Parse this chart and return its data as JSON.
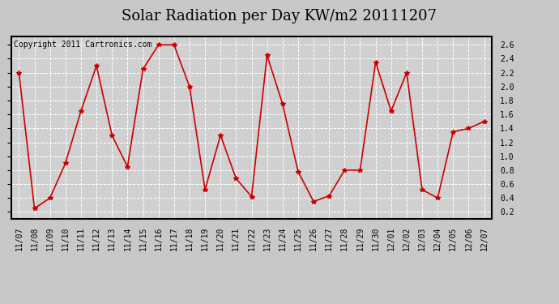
{
  "title": "Solar Radiation per Day KW/m2 20111207",
  "copyright_text": "Copyright 2011 Cartronics.com",
  "dates": [
    "11/07",
    "11/08",
    "11/09",
    "11/10",
    "11/11",
    "11/12",
    "11/13",
    "11/14",
    "11/15",
    "11/16",
    "11/17",
    "11/18",
    "11/19",
    "11/20",
    "11/21",
    "11/22",
    "11/23",
    "11/24",
    "11/25",
    "11/26",
    "11/27",
    "11/28",
    "11/29",
    "11/30",
    "12/01",
    "12/02",
    "12/03",
    "12/04",
    "12/05",
    "12/06",
    "12/07"
  ],
  "values": [
    2.2,
    0.25,
    0.4,
    0.9,
    1.65,
    2.3,
    1.3,
    0.85,
    2.25,
    2.6,
    2.6,
    2.0,
    0.52,
    1.3,
    0.68,
    0.42,
    2.45,
    1.75,
    0.78,
    0.35,
    0.43,
    0.8,
    0.8,
    2.35,
    1.65,
    2.2,
    0.52,
    0.4,
    1.35,
    1.4,
    1.5
  ],
  "line_color": "#cc0000",
  "marker": "*",
  "marker_size": 4,
  "fig_bg_color": "#c8c8c8",
  "plot_bg_color": "#d0d0d0",
  "grid_color": "#ffffff",
  "border_color": "#000000",
  "ylim": [
    0.1,
    2.72
  ],
  "yticks": [
    0.2,
    0.4,
    0.6,
    0.8,
    1.0,
    1.2,
    1.4,
    1.6,
    1.8,
    2.0,
    2.2,
    2.4,
    2.6
  ],
  "title_fontsize": 13,
  "tick_fontsize": 7,
  "copyright_fontsize": 7
}
